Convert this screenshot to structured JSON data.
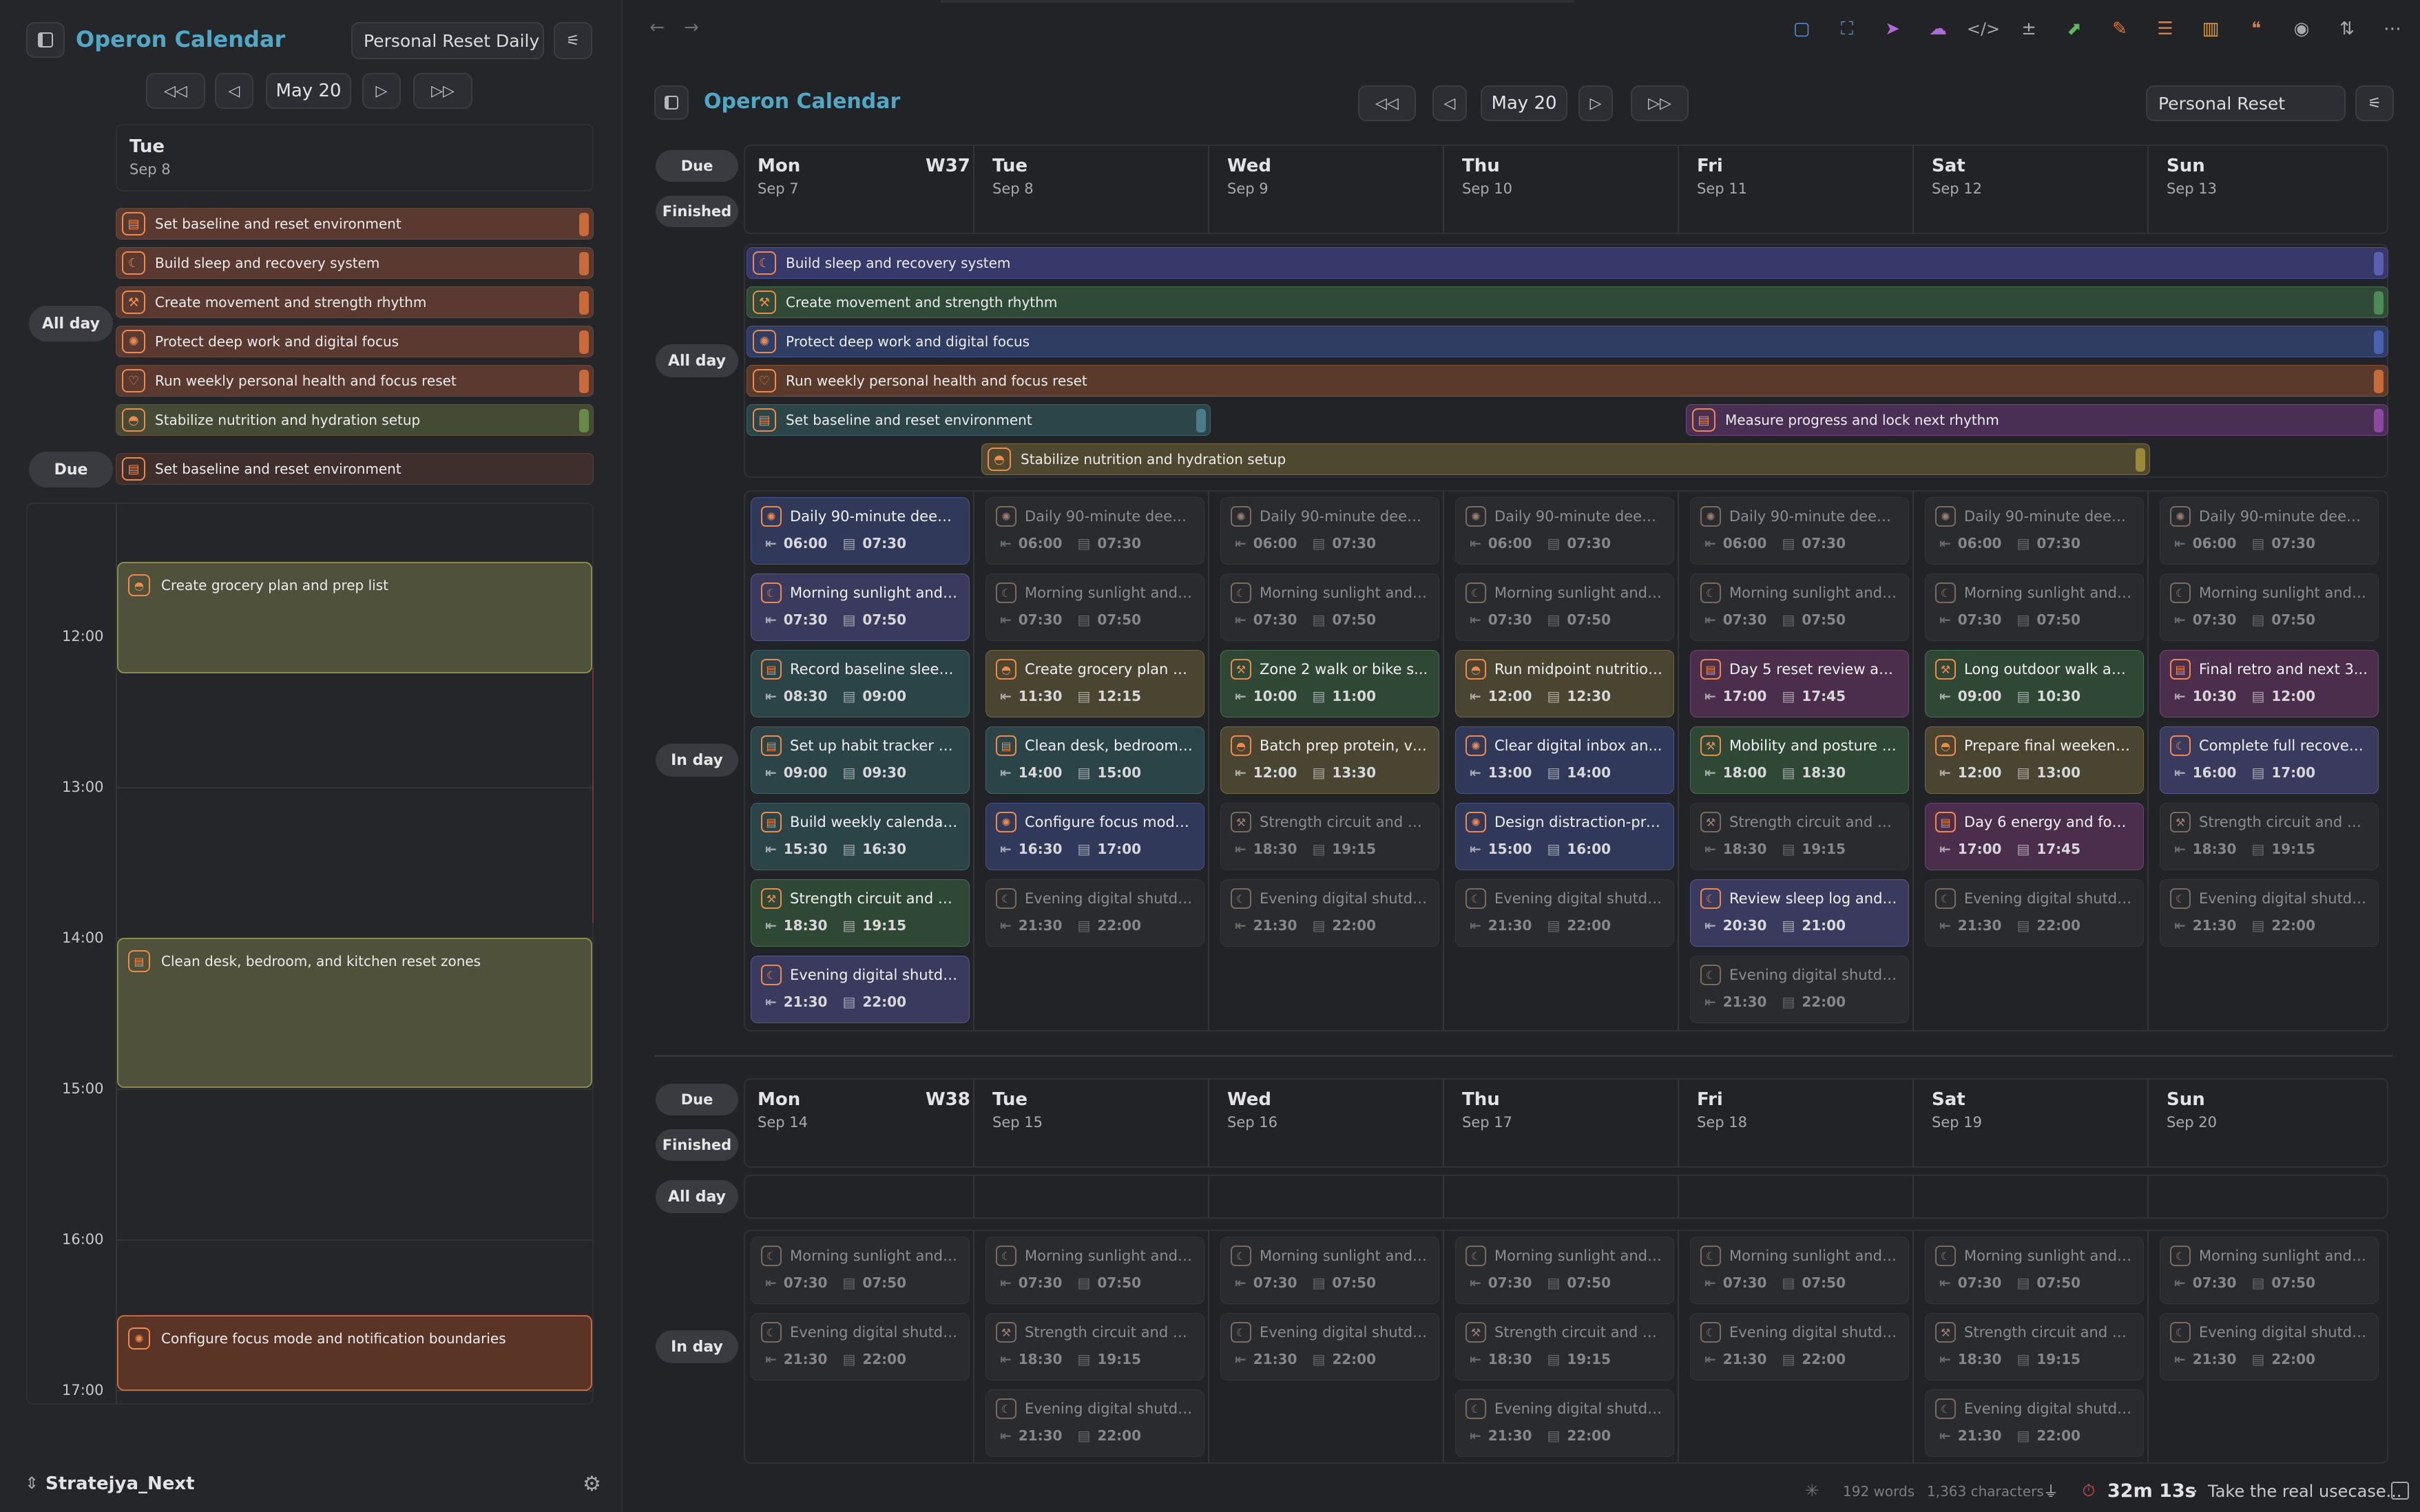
{
  "left": {
    "title": "Operon Calendar",
    "view": "Personal Reset Daily",
    "date": "May 20",
    "day_name": "Tue",
    "day_date": "Sep 8",
    "allday_label": "All day",
    "due_label": "Due",
    "allday": [
      {
        "label": "Set baseline and reset environment",
        "icon": "clipboard-icon"
      },
      {
        "label": "Build sleep and recovery system",
        "icon": "moon-icon"
      },
      {
        "label": "Create movement and strength rhythm",
        "icon": "dumbbell-icon"
      },
      {
        "label": "Protect deep work and digital focus",
        "icon": "brain-icon"
      },
      {
        "label": "Run weekly personal health and focus reset",
        "icon": "heart-icon"
      },
      {
        "label": "Stabilize nutrition and hydration setup",
        "icon": "bowl-icon"
      }
    ],
    "due": [
      {
        "label": "Set baseline and reset environment",
        "icon": "clipboard-icon"
      }
    ],
    "hours": [
      "12:00",
      "13:00",
      "14:00",
      "15:00",
      "16:00",
      "17:00"
    ],
    "events": [
      {
        "label": "Create grocery plan and prep list",
        "icon": "bowl-icon"
      },
      {
        "label": "Clean desk, bedroom, and kitchen reset zones",
        "icon": "clipboard-icon"
      },
      {
        "label": "Configure focus mode and notification boundaries",
        "icon": "brain-icon"
      }
    ],
    "workspace": "Stratejya_Next"
  },
  "main": {
    "title": "Operon Calendar",
    "date": "May 20",
    "view": "Personal Reset",
    "labels": {
      "due": "Due",
      "finished": "Finished",
      "allday": "All day",
      "inday": "In day"
    },
    "week1": {
      "wk": "W37",
      "days": [
        {
          "n": "Mon",
          "d": "Sep 7"
        },
        {
          "n": "Tue",
          "d": "Sep 8"
        },
        {
          "n": "Wed",
          "d": "Sep 9"
        },
        {
          "n": "Thu",
          "d": "Sep 10"
        },
        {
          "n": "Fri",
          "d": "Sep 11"
        },
        {
          "n": "Sat",
          "d": "Sep 12"
        },
        {
          "n": "Sun",
          "d": "Sep 13"
        }
      ],
      "allday": [
        {
          "label": "Build sleep and recovery system",
          "icon": "moon-icon"
        },
        {
          "label": "Create movement and strength rhythm",
          "icon": "dumbbell-icon"
        },
        {
          "label": "Protect deep work and digital focus",
          "icon": "brain-icon"
        },
        {
          "label": "Run weekly personal health and focus reset",
          "icon": "heart-icon"
        },
        {
          "label": "Set baseline and reset environment",
          "icon": "clipboard-icon"
        },
        {
          "label": "Measure progress and lock next rhythm",
          "icon": "clipboard-icon"
        },
        {
          "label": "Stabilize nutrition and hydration setup",
          "icon": "bowl-icon"
        }
      ],
      "cols": [
        [
          {
            "t": "Daily 90-minute deep ...",
            "s": "06:00",
            "e": "07:30",
            "k": "blue",
            "i": "brain-icon"
          },
          {
            "t": "Morning sunlight and ...",
            "s": "07:30",
            "e": "07:50",
            "k": "purple",
            "i": "moon-icon"
          },
          {
            "t": "Record baseline sleep,...",
            "s": "08:30",
            "e": "09:00",
            "k": "teal",
            "i": "clipboard-icon"
          },
          {
            "t": "Set up habit tracker a...",
            "s": "09:00",
            "e": "09:30",
            "k": "teal",
            "i": "clipboard-icon"
          },
          {
            "t": "Build weekly calendar ...",
            "s": "15:30",
            "e": "16:30",
            "k": "teal",
            "i": "clipboard-icon"
          },
          {
            "t": "Strength circuit and pr...",
            "s": "18:30",
            "e": "19:15",
            "k": "green",
            "i": "dumbbell-icon"
          },
          {
            "t": "Evening digital shutdo...",
            "s": "21:30",
            "e": "22:00",
            "k": "purple",
            "i": "moon-icon"
          }
        ],
        [
          {
            "t": "Daily 90-minute deep ...",
            "s": "06:00",
            "e": "07:30",
            "k": "dim",
            "i": "brain-icon"
          },
          {
            "t": "Morning sunlight and ...",
            "s": "07:30",
            "e": "07:50",
            "k": "dim",
            "i": "moon-icon"
          },
          {
            "t": "Create grocery plan a...",
            "s": "11:30",
            "e": "12:15",
            "k": "olive",
            "i": "bowl-icon"
          },
          {
            "t": "Clean desk, bedroom,...",
            "s": "14:00",
            "e": "15:00",
            "k": "teal",
            "i": "clipboard-icon"
          },
          {
            "t": "Configure focus mode ...",
            "s": "16:30",
            "e": "17:00",
            "k": "blue",
            "i": "brain-icon"
          },
          {
            "t": "Evening digital shutdo...",
            "s": "21:30",
            "e": "22:00",
            "k": "dim",
            "i": "moon-icon"
          }
        ],
        [
          {
            "t": "Daily 90-minute deep ...",
            "s": "06:00",
            "e": "07:30",
            "k": "dim",
            "i": "brain-icon"
          },
          {
            "t": "Morning sunlight and ...",
            "s": "07:30",
            "e": "07:50",
            "k": "dim",
            "i": "moon-icon"
          },
          {
            "t": "Zone 2 walk or bike s...",
            "s": "10:00",
            "e": "11:00",
            "k": "green",
            "i": "dumbbell-icon"
          },
          {
            "t": "Batch prep protein, ve...",
            "s": "12:00",
            "e": "13:30",
            "k": "olive",
            "i": "bowl-icon"
          },
          {
            "t": "Strength circuit and pr...",
            "s": "18:30",
            "e": "19:15",
            "k": "dim",
            "i": "dumbbell-icon"
          },
          {
            "t": "Evening digital shutdo...",
            "s": "21:30",
            "e": "22:00",
            "k": "dim",
            "i": "moon-icon"
          }
        ],
        [
          {
            "t": "Daily 90-minute deep ...",
            "s": "06:00",
            "e": "07:30",
            "k": "dim",
            "i": "brain-icon"
          },
          {
            "t": "Morning sunlight and ...",
            "s": "07:30",
            "e": "07:50",
            "k": "dim",
            "i": "moon-icon"
          },
          {
            "t": "Run midpoint nutrition ...",
            "s": "12:00",
            "e": "12:30",
            "k": "olive",
            "i": "bowl-icon"
          },
          {
            "t": "Clear digital inbox an...",
            "s": "13:00",
            "e": "14:00",
            "k": "blue",
            "i": "brain-icon"
          },
          {
            "t": "Design distraction-pro...",
            "s": "15:00",
            "e": "16:00",
            "k": "blue",
            "i": "brain-icon"
          },
          {
            "t": "Evening digital shutdo...",
            "s": "21:30",
            "e": "22:00",
            "k": "dim",
            "i": "moon-icon"
          }
        ],
        [
          {
            "t": "Daily 90-minute deep ...",
            "s": "06:00",
            "e": "07:30",
            "k": "dim",
            "i": "brain-icon"
          },
          {
            "t": "Morning sunlight and ...",
            "s": "07:30",
            "e": "07:50",
            "k": "dim",
            "i": "moon-icon"
          },
          {
            "t": "Day 5 reset review an...",
            "s": "17:00",
            "e": "17:45",
            "k": "magenta",
            "i": "clipboard-icon"
          },
          {
            "t": "Mobility and posture r...",
            "s": "18:00",
            "e": "18:30",
            "k": "green",
            "i": "dumbbell-icon"
          },
          {
            "t": "Strength circuit and pr...",
            "s": "18:30",
            "e": "19:15",
            "k": "dim",
            "i": "dumbbell-icon"
          },
          {
            "t": "Review sleep log and ...",
            "s": "20:30",
            "e": "21:00",
            "k": "purple",
            "i": "moon-icon"
          },
          {
            "t": "Evening digital shutdo...",
            "s": "21:30",
            "e": "22:00",
            "k": "dim",
            "i": "moon-icon"
          }
        ],
        [
          {
            "t": "Daily 90-minute deep ...",
            "s": "06:00",
            "e": "07:30",
            "k": "dim",
            "i": "brain-icon"
          },
          {
            "t": "Morning sunlight and ...",
            "s": "07:30",
            "e": "07:50",
            "k": "dim",
            "i": "moon-icon"
          },
          {
            "t": "Long outdoor walk an...",
            "s": "09:00",
            "e": "10:30",
            "k": "green",
            "i": "dumbbell-icon"
          },
          {
            "t": "Prepare final weekend...",
            "s": "12:00",
            "e": "13:00",
            "k": "olive",
            "i": "bowl-icon"
          },
          {
            "t": "Day 6 energy and foc...",
            "s": "17:00",
            "e": "17:45",
            "k": "magenta",
            "i": "clipboard-icon"
          },
          {
            "t": "Evening digital shutdo...",
            "s": "21:30",
            "e": "22:00",
            "k": "dim",
            "i": "moon-icon"
          }
        ],
        [
          {
            "t": "Daily 90-minute deep ...",
            "s": "06:00",
            "e": "07:30",
            "k": "dim",
            "i": "brain-icon"
          },
          {
            "t": "Morning sunlight and ...",
            "s": "07:30",
            "e": "07:50",
            "k": "dim",
            "i": "moon-icon"
          },
          {
            "t": "Final retro and next 3...",
            "s": "10:30",
            "e": "12:00",
            "k": "magenta",
            "i": "clipboard-icon"
          },
          {
            "t": "Complete full recovery...",
            "s": "16:00",
            "e": "17:00",
            "k": "purple",
            "i": "moon-icon"
          },
          {
            "t": "Strength circuit and pr...",
            "s": "18:30",
            "e": "19:15",
            "k": "dim",
            "i": "dumbbell-icon"
          },
          {
            "t": "Evening digital shutdo...",
            "s": "21:30",
            "e": "22:00",
            "k": "dim",
            "i": "moon-icon"
          }
        ]
      ]
    },
    "week2": {
      "wk": "W38",
      "days": [
        {
          "n": "Mon",
          "d": "Sep 14"
        },
        {
          "n": "Tue",
          "d": "Sep 15"
        },
        {
          "n": "Wed",
          "d": "Sep 16"
        },
        {
          "n": "Thu",
          "d": "Sep 17"
        },
        {
          "n": "Fri",
          "d": "Sep 18"
        },
        {
          "n": "Sat",
          "d": "Sep 19"
        },
        {
          "n": "Sun",
          "d": "Sep 20"
        }
      ],
      "cols": [
        [
          {
            "t": "Morning sunlight and ...",
            "s": "07:30",
            "e": "07:50",
            "k": "dim",
            "i": "moon-icon"
          },
          {
            "t": "Evening digital shutdo...",
            "s": "21:30",
            "e": "22:00",
            "k": "dim",
            "i": "moon-icon"
          }
        ],
        [
          {
            "t": "Morning sunlight and ...",
            "s": "07:30",
            "e": "07:50",
            "k": "dim",
            "i": "moon-icon"
          },
          {
            "t": "Strength circuit and pr...",
            "s": "18:30",
            "e": "19:15",
            "k": "dim",
            "i": "dumbbell-icon"
          },
          {
            "t": "Evening digital shutdo...",
            "s": "21:30",
            "e": "22:00",
            "k": "dim",
            "i": "moon-icon"
          }
        ],
        [
          {
            "t": "Morning sunlight and ...",
            "s": "07:30",
            "e": "07:50",
            "k": "dim",
            "i": "moon-icon"
          },
          {
            "t": "Evening digital shutdo...",
            "s": "21:30",
            "e": "22:00",
            "k": "dim",
            "i": "moon-icon"
          }
        ],
        [
          {
            "t": "Morning sunlight and ...",
            "s": "07:30",
            "e": "07:50",
            "k": "dim",
            "i": "moon-icon"
          },
          {
            "t": "Strength circuit and pr...",
            "s": "18:30",
            "e": "19:15",
            "k": "dim",
            "i": "dumbbell-icon"
          },
          {
            "t": "Evening digital shutdo...",
            "s": "21:30",
            "e": "22:00",
            "k": "dim",
            "i": "moon-icon"
          }
        ],
        [
          {
            "t": "Morning sunlight and ...",
            "s": "07:30",
            "e": "07:50",
            "k": "dim",
            "i": "moon-icon"
          },
          {
            "t": "Evening digital shutdo...",
            "s": "21:30",
            "e": "22:00",
            "k": "dim",
            "i": "moon-icon"
          }
        ],
        [
          {
            "t": "Morning sunlight and ...",
            "s": "07:30",
            "e": "07:50",
            "k": "dim",
            "i": "moon-icon"
          },
          {
            "t": "Strength circuit and pr...",
            "s": "18:30",
            "e": "19:15",
            "k": "dim",
            "i": "dumbbell-icon"
          },
          {
            "t": "Evening digital shutdo...",
            "s": "21:30",
            "e": "22:00",
            "k": "dim",
            "i": "moon-icon"
          }
        ],
        [
          {
            "t": "Morning sunlight and ...",
            "s": "07:30",
            "e": "07:50",
            "k": "dim",
            "i": "moon-icon"
          },
          {
            "t": "Evening digital shutdo...",
            "s": "21:30",
            "e": "22:00",
            "k": "dim",
            "i": "moon-icon"
          }
        ]
      ]
    }
  },
  "status": {
    "words": "192 words",
    "chars": "1,363 characters",
    "timer": "32m 13s",
    "note": "Take the real usecase..."
  },
  "icons": {
    "clipboard-icon": "▤",
    "moon-icon": "☾",
    "dumbbell-icon": "⚒",
    "brain-icon": "✺",
    "heart-icon": "♡",
    "bowl-icon": "◓"
  },
  "colors": {
    "accent": "#52a8c4",
    "blue": "#2f3b5c",
    "purple": "#3a3a5e",
    "teal": "#2b4548",
    "green": "#2f4a37",
    "olive": "#4a4632",
    "magenta": "#4a2f4c",
    "left_orange": "#5a3a30",
    "left_green": "#454a35",
    "event_olive": "#50513a",
    "event_orange": "#5a3526"
  }
}
